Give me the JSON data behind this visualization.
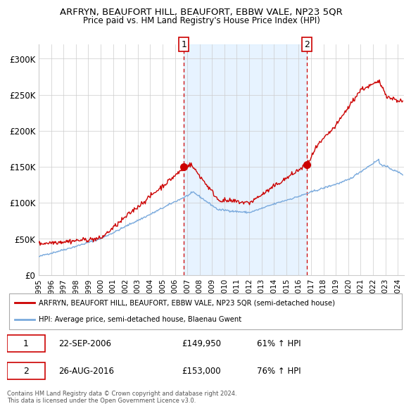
{
  "title": "ARFRYN, BEAUFORT HILL, BEAUFORT, EBBW VALE, NP23 5QR",
  "subtitle": "Price paid vs. HM Land Registry's House Price Index (HPI)",
  "legend_line1": "ARFRYN, BEAUFORT HILL, BEAUFORT, EBBW VALE, NP23 5QR (semi-detached house)",
  "legend_line2": "HPI: Average price, semi-detached house, Blaenau Gwent",
  "annotation1_label": "1",
  "annotation1_date": "22-SEP-2006",
  "annotation1_price": "£149,950",
  "annotation1_hpi": "61% ↑ HPI",
  "annotation2_label": "2",
  "annotation2_date": "26-AUG-2016",
  "annotation2_price": "£153,000",
  "annotation2_hpi": "76% ↑ HPI",
  "footnote": "Contains HM Land Registry data © Crown copyright and database right 2024.\nThis data is licensed under the Open Government Licence v3.0.",
  "price_color": "#cc0000",
  "hpi_color": "#7aaadd",
  "shade_color": "#ddeeff",
  "annotation_color": "#cc0000",
  "background_color": "#ffffff",
  "grid_color": "#cccccc",
  "ylim": [
    0,
    320000
  ],
  "yticks": [
    0,
    50000,
    100000,
    150000,
    200000,
    250000,
    300000
  ],
  "ytick_labels": [
    "£0",
    "£50K",
    "£100K",
    "£150K",
    "£200K",
    "£250K",
    "£300K"
  ],
  "sale1_x": 2006.73,
  "sale1_y": 149950,
  "sale2_x": 2016.65,
  "sale2_y": 153000,
  "xmin": 1995,
  "xmax": 2024.5,
  "xticks": [
    1995,
    1996,
    1997,
    1998,
    1999,
    2000,
    2001,
    2002,
    2003,
    2004,
    2005,
    2006,
    2007,
    2008,
    2009,
    2010,
    2011,
    2012,
    2013,
    2014,
    2015,
    2016,
    2017,
    2018,
    2019,
    2020,
    2021,
    2022,
    2023,
    2024
  ]
}
